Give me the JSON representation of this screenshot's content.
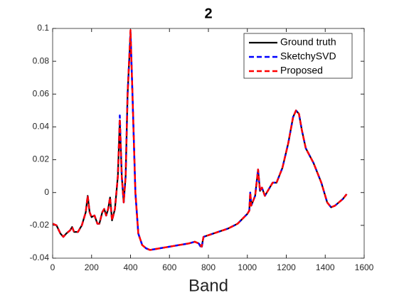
{
  "chart_data": {
    "type": "line",
    "title": "2",
    "x_label": "Band",
    "x": [
      0,
      20,
      40,
      55,
      70,
      90,
      100,
      110,
      130,
      150,
      170,
      180,
      190,
      200,
      215,
      230,
      240,
      255,
      265,
      275,
      285,
      295,
      305,
      320,
      335,
      345,
      355,
      365,
      375,
      385,
      400,
      410,
      425,
      440,
      460,
      480,
      500,
      550,
      600,
      650,
      700,
      730,
      750,
      765,
      775,
      800,
      850,
      900,
      950,
      1000,
      1010,
      1015,
      1020,
      1040,
      1055,
      1065,
      1075,
      1090,
      1110,
      1130,
      1150,
      1180,
      1210,
      1235,
      1250,
      1265,
      1280,
      1300,
      1340,
      1380,
      1410,
      1430,
      1450,
      1470,
      1490,
      1510
    ],
    "series": [
      {
        "name": "Ground truth",
        "color": "#000000",
        "style": "solid",
        "values": [
          -0.019,
          -0.02,
          -0.025,
          -0.027,
          -0.025,
          -0.023,
          -0.021,
          -0.024,
          -0.024,
          -0.02,
          -0.012,
          -0.002,
          -0.012,
          -0.015,
          -0.014,
          -0.019,
          -0.019,
          -0.012,
          -0.01,
          -0.014,
          -0.01,
          -0.003,
          -0.017,
          -0.01,
          0.01,
          0.044,
          0.01,
          -0.006,
          0.01,
          0.06,
          0.097,
          0.06,
          0,
          -0.025,
          -0.032,
          -0.034,
          -0.035,
          -0.034,
          -0.033,
          -0.032,
          -0.031,
          -0.03,
          -0.031,
          -0.033,
          -0.027,
          -0.026,
          -0.024,
          -0.022,
          -0.019,
          -0.013,
          -0.011,
          0,
          -0.008,
          -0.002,
          0.014,
          0.001,
          0.003,
          -0.002,
          0.002,
          0.006,
          0.006,
          0.015,
          0.03,
          0.046,
          0.05,
          0.048,
          0.038,
          0.027,
          0.018,
          0.006,
          -0.006,
          -0.009,
          -0.008,
          -0.006,
          -0.004,
          -0.001
        ]
      },
      {
        "name": "SketchySVD",
        "color": "#0000ff",
        "style": "dashed",
        "values": [
          -0.019,
          -0.02,
          -0.025,
          -0.027,
          -0.025,
          -0.023,
          -0.021,
          -0.024,
          -0.024,
          -0.02,
          -0.012,
          -0.002,
          -0.012,
          -0.015,
          -0.014,
          -0.019,
          -0.019,
          -0.012,
          -0.01,
          -0.014,
          -0.01,
          -0.003,
          -0.017,
          -0.01,
          0.01,
          0.047,
          0.01,
          -0.006,
          0.01,
          0.06,
          0.098,
          0.06,
          0,
          -0.025,
          -0.032,
          -0.034,
          -0.035,
          -0.034,
          -0.033,
          -0.032,
          -0.031,
          -0.03,
          -0.031,
          -0.034,
          -0.027,
          -0.026,
          -0.024,
          -0.022,
          -0.019,
          -0.013,
          -0.011,
          0,
          -0.008,
          -0.002,
          0.014,
          0.001,
          0.003,
          -0.002,
          0.002,
          0.006,
          0.006,
          0.015,
          0.03,
          0.046,
          0.05,
          0.048,
          0.038,
          0.027,
          0.018,
          0.006,
          -0.006,
          -0.009,
          -0.008,
          -0.006,
          -0.004,
          -0.001
        ]
      },
      {
        "name": "Proposed",
        "color": "#ff0000",
        "style": "dashed",
        "values": [
          -0.019,
          -0.02,
          -0.025,
          -0.027,
          -0.025,
          -0.023,
          -0.021,
          -0.024,
          -0.024,
          -0.02,
          -0.012,
          -0.002,
          -0.012,
          -0.015,
          -0.014,
          -0.019,
          -0.019,
          -0.012,
          -0.01,
          -0.014,
          -0.01,
          -0.003,
          -0.017,
          -0.01,
          0.01,
          0.045,
          0.01,
          -0.006,
          0.01,
          0.06,
          0.099,
          0.06,
          0,
          -0.025,
          -0.032,
          -0.034,
          -0.035,
          -0.034,
          -0.033,
          -0.032,
          -0.031,
          -0.03,
          -0.031,
          -0.033,
          -0.027,
          -0.026,
          -0.024,
          -0.022,
          -0.019,
          -0.013,
          -0.011,
          0,
          -0.008,
          -0.002,
          0.014,
          0.001,
          0.003,
          -0.002,
          0.002,
          0.006,
          0.006,
          0.015,
          0.03,
          0.046,
          0.05,
          0.048,
          0.038,
          0.027,
          0.018,
          0.006,
          -0.006,
          -0.009,
          -0.008,
          -0.006,
          -0.004,
          -0.001
        ]
      }
    ],
    "xlim": [
      0,
      1600
    ],
    "xticks": [
      0,
      200,
      400,
      600,
      800,
      1000,
      1200,
      1400,
      1600
    ],
    "ylim": [
      -0.04,
      0.1
    ],
    "yticks": [
      -0.04,
      -0.02,
      0,
      0.02,
      0.04,
      0.06,
      0.08,
      0.1
    ],
    "grid": false,
    "legend": "upper right"
  }
}
